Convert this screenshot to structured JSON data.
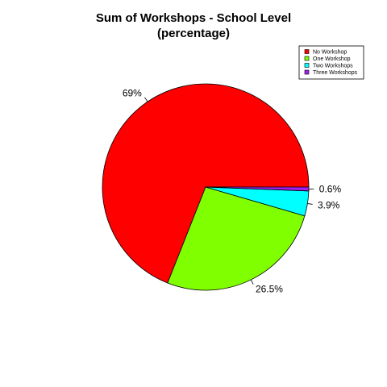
{
  "chart_data": {
    "type": "pie",
    "title": "Sum of Workshops - School Level",
    "subtitle": "(percentage)",
    "legend_position": "top-right",
    "direction": "counterclockwise",
    "start_angle_deg": 0,
    "slices": [
      {
        "label": "No Workshop",
        "value": 69,
        "value_label": "69%",
        "color": "#ff0000"
      },
      {
        "label": "One Workshop",
        "value": 26.5,
        "value_label": "26.5%",
        "color": "#7fff00"
      },
      {
        "label": "Two Workshops",
        "value": 3.9,
        "value_label": "3.9%",
        "color": "#00ffff"
      },
      {
        "label": "Three Workshops",
        "value": 0.6,
        "value_label": "0.6%",
        "color": "#a020f0"
      }
    ]
  }
}
